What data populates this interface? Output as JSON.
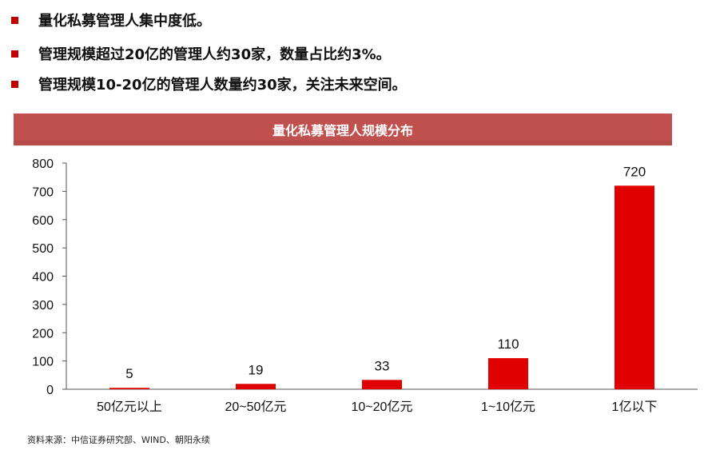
{
  "bullets": [
    {
      "text": "量化私募管理人集中度低。"
    },
    {
      "text": "管理规模超过20亿的管理人约30家，数量占比约3%。"
    },
    {
      "text": "管理规模10-20亿的管理人数量约30家，关注未来空间。"
    }
  ],
  "colors": {
    "accent": "#c00000",
    "bar": "#e00000",
    "banner": "#c0504d",
    "axis": "#555555"
  },
  "chart_data": {
    "type": "bar",
    "title": "量化私募管理人规模分布",
    "categories": [
      "50亿元以上",
      "20~50亿元",
      "10~20亿元",
      "1~10亿元",
      "1亿以下"
    ],
    "values": [
      5,
      19,
      33,
      110,
      720
    ],
    "ylim": [
      0,
      800
    ],
    "yticks": [
      0,
      100,
      200,
      300,
      400,
      500,
      600,
      700,
      800
    ],
    "xlabel": "",
    "ylabel": "",
    "grid": false,
    "legend": "none",
    "data_labels": true
  },
  "source": "资料来源：中信证券研究部、WIND、朝阳永续"
}
